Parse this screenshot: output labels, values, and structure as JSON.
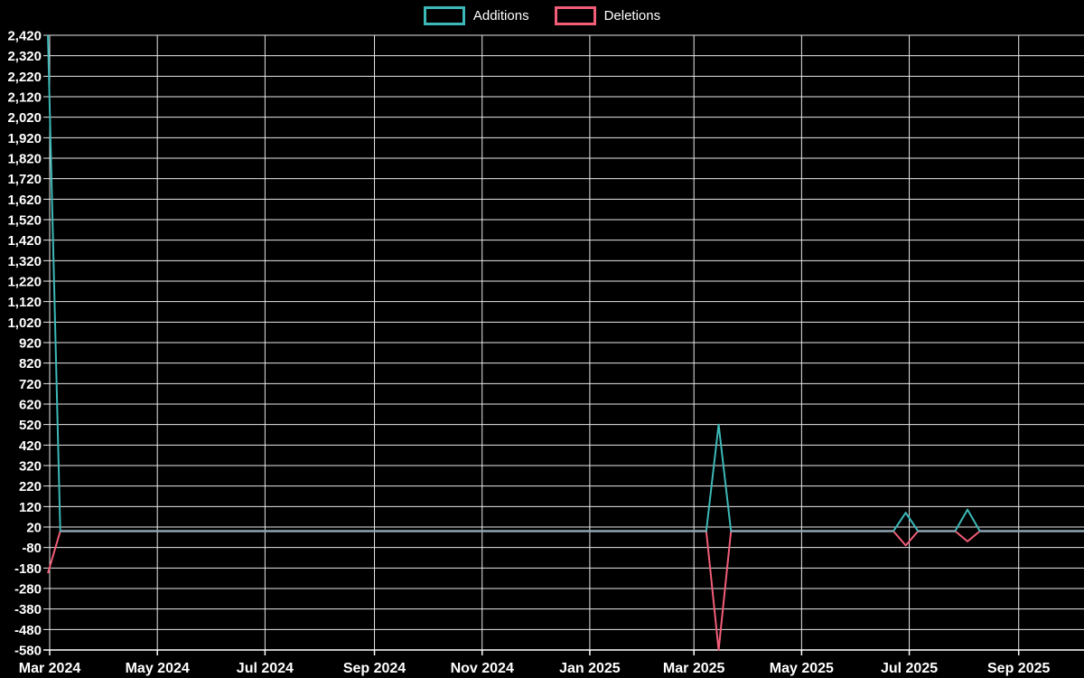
{
  "colors": {
    "background": "#000000",
    "grid": "#e8e8e8",
    "axis": "#ffffff",
    "text": "#ffffff",
    "additions": "#3db8b8",
    "deletions": "#f25d78",
    "zero_overlap": "#8ca6b2"
  },
  "chart_data": {
    "type": "line",
    "title": "",
    "legend_position": "top-center",
    "grid": true,
    "background": "#000000",
    "x_domain": [
      "2024-03-01",
      "2025-10-08"
    ],
    "x_ticks": [
      {
        "date": "2024-03-01",
        "label": "Mar 2024"
      },
      {
        "date": "2024-05-01",
        "label": "May 2024"
      },
      {
        "date": "2024-07-01",
        "label": "Jul 2024"
      },
      {
        "date": "2024-09-01",
        "label": "Sep 2024"
      },
      {
        "date": "2024-11-01",
        "label": "Nov 2024"
      },
      {
        "date": "2025-01-01",
        "label": "Jan 2025"
      },
      {
        "date": "2025-03-01",
        "label": "Mar 2025"
      },
      {
        "date": "2025-05-01",
        "label": "May 2025"
      },
      {
        "date": "2025-07-01",
        "label": "Jul 2025"
      },
      {
        "date": "2025-09-01",
        "label": "Sep 2025"
      }
    ],
    "y_min": -580,
    "y_max": 2420,
    "y_step": 100,
    "y_tick_labels": [
      "2,420",
      "2,320",
      "2,220",
      "2,120",
      "2,020",
      "1,920",
      "1,820",
      "1,720",
      "1,620",
      "1,520",
      "1,420",
      "1,320",
      "1,220",
      "1,120",
      "1,020",
      "920",
      "820",
      "720",
      "620",
      "520",
      "420",
      "320",
      "220",
      "120",
      "20",
      "-80",
      "-180",
      "-280",
      "-380",
      "-480",
      "-580"
    ],
    "x": [
      "2024-02-29",
      "2024-03-07",
      "2025-03-08",
      "2025-03-15",
      "2025-03-22",
      "2025-06-22",
      "2025-06-29",
      "2025-07-06",
      "2025-07-27",
      "2025-08-03",
      "2025-08-10",
      "2025-10-08"
    ],
    "series": [
      {
        "name": "Additions",
        "color": "#3db8b8",
        "values": [
          2420,
          0,
          0,
          520,
          0,
          0,
          90,
          0,
          0,
          105,
          0,
          0
        ]
      },
      {
        "name": "Deletions",
        "color": "#f25d78",
        "values": [
          -205,
          0,
          0,
          -580,
          0,
          0,
          -70,
          0,
          0,
          -50,
          0,
          0
        ]
      }
    ],
    "zero_overlap_color": "#8ca6b2"
  }
}
